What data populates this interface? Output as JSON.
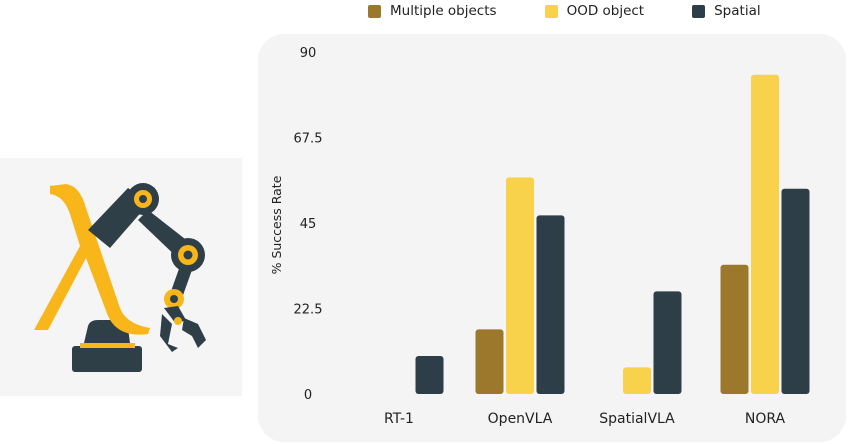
{
  "colors": {
    "multiple_objects": "#9b782c",
    "ood_object": "#f7d24a",
    "spatial": "#2d3e48",
    "logo_yellow": "#f8b61a",
    "logo_dark": "#2f3f48"
  },
  "logo": {
    "icon": "lambda-robot-arm-icon"
  },
  "chart_data": {
    "type": "bar",
    "ylabel": "% Success Rate",
    "ylim": [
      0,
      90
    ],
    "yticks": [
      "0",
      "22.5",
      "45",
      "67.5",
      "90"
    ],
    "categories": [
      "RT-1",
      "OpenVLA",
      "SpatialVLA",
      "NORA"
    ],
    "legend_position": "top",
    "series": [
      {
        "name": "Multiple objects",
        "color": "#9b782c",
        "values": [
          0,
          17,
          0,
          34
        ]
      },
      {
        "name": "OOD object",
        "color": "#f7d24a",
        "values": [
          0,
          57,
          7,
          84
        ]
      },
      {
        "name": "Spatial",
        "color": "#2d3e48",
        "values": [
          10,
          47,
          27,
          54
        ]
      }
    ]
  }
}
